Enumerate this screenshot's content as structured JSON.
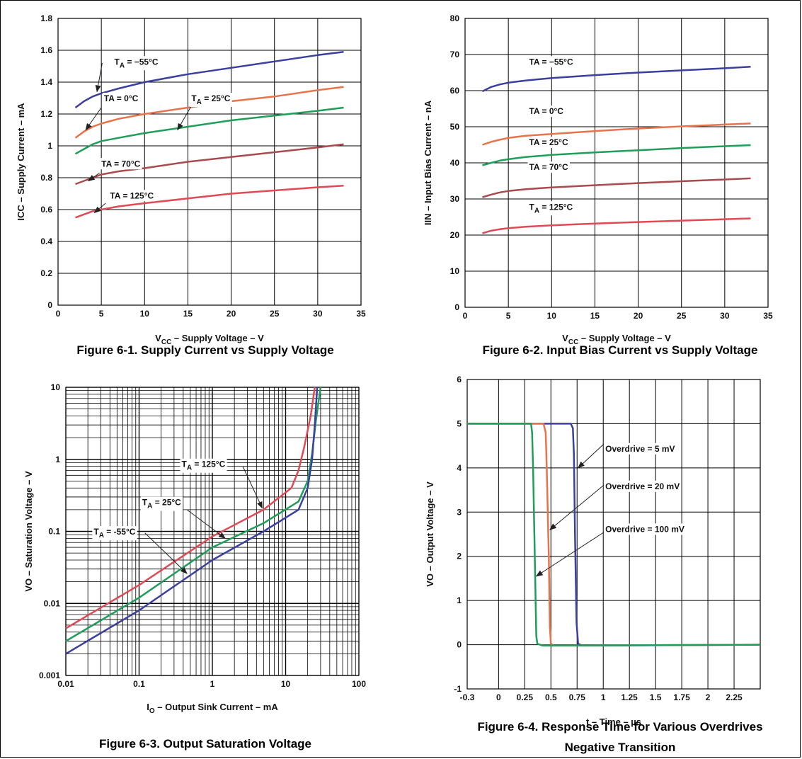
{
  "chart_data": [
    {
      "id": "fig1",
      "type": "line",
      "caption": "Figure 6-1. Supply Current vs Supply Voltage",
      "xlabel": "V",
      "xlabel_sub": "CC",
      "xlabel_rest": " – Supply Voltage – V",
      "ylabel": "ICC – Supply Current – mA",
      "xlim": [
        0,
        35
      ],
      "ylim": [
        0,
        1.8
      ],
      "xticks": [
        0,
        5,
        10,
        15,
        20,
        25,
        30,
        35
      ],
      "yticks": [
        0,
        0.2,
        0.4,
        0.6,
        0.8,
        1,
        1.2,
        1.4,
        1.6,
        1.8
      ],
      "ytick_labels": [
        "0",
        "0.2",
        "0.4",
        "0.6",
        "0.8",
        "1",
        "1.2",
        "1.4",
        "1.6",
        "1.8"
      ],
      "grid": true,
      "series": [
        {
          "name": "TA = −55°C",
          "color": "#3b3f9e",
          "x": [
            2,
            3,
            4,
            5,
            7,
            10,
            15,
            20,
            25,
            30,
            33
          ],
          "y": [
            1.24,
            1.28,
            1.31,
            1.33,
            1.36,
            1.4,
            1.45,
            1.49,
            1.53,
            1.57,
            1.59
          ]
        },
        {
          "name": "TA = 0°C",
          "color": "#e8734a",
          "x": [
            2,
            3,
            4,
            5,
            7,
            10,
            15,
            20,
            25,
            30,
            33
          ],
          "y": [
            1.05,
            1.09,
            1.12,
            1.14,
            1.17,
            1.2,
            1.24,
            1.28,
            1.31,
            1.35,
            1.37
          ]
        },
        {
          "name": "TA = 25°C",
          "color": "#1f9e5a",
          "x": [
            2,
            3,
            4,
            5,
            7,
            10,
            15,
            20,
            25,
            30,
            33
          ],
          "y": [
            0.95,
            0.98,
            1.01,
            1.03,
            1.05,
            1.08,
            1.12,
            1.16,
            1.19,
            1.22,
            1.24
          ]
        },
        {
          "name": "TA = 70°C",
          "color": "#a94a4f",
          "x": [
            2,
            3,
            4,
            5,
            7,
            10,
            15,
            20,
            25,
            30,
            33
          ],
          "y": [
            0.76,
            0.78,
            0.8,
            0.82,
            0.84,
            0.86,
            0.9,
            0.93,
            0.96,
            0.99,
            1.01
          ]
        },
        {
          "name": "TA = 125°C",
          "color": "#e04a55",
          "x": [
            2,
            3,
            4,
            5,
            7,
            10,
            15,
            20,
            25,
            30,
            33
          ],
          "y": [
            0.55,
            0.57,
            0.59,
            0.6,
            0.62,
            0.64,
            0.67,
            0.7,
            0.72,
            0.74,
            0.75
          ]
        }
      ],
      "annotations": [
        {
          "text": "T",
          "sub": "A",
          "rest": " = −55°C",
          "tx": 6.5,
          "ty": 1.51,
          "ax": 5.1,
          "ay": 1.52,
          "px": 4.5,
          "py": 1.34
        },
        {
          "text": "TA = 0°C",
          "tx": 5.3,
          "ty": 1.28,
          "ax": 5.0,
          "ay": 1.24,
          "px": 3.2,
          "py": 1.1
        },
        {
          "text": "T",
          "sub": "A",
          "rest": " = 25°C",
          "tx": 15.4,
          "ty": 1.28,
          "ax": 15.5,
          "ay": 1.26,
          "px": 13.8,
          "py": 1.1
        },
        {
          "text": "TA = 70°C",
          "tx": 5.0,
          "ty": 0.87,
          "ax": 4.8,
          "ay": 0.83,
          "px": 3.5,
          "py": 0.78
        },
        {
          "text": "TA = 125°C",
          "tx": 6.0,
          "ty": 0.67,
          "ax": 5.5,
          "ay": 0.64,
          "px": 4.2,
          "py": 0.58
        }
      ]
    },
    {
      "id": "fig2",
      "type": "line",
      "caption": "Figure 6-2. Input Bias Current vs Supply Voltage",
      "xlabel": "V",
      "xlabel_sub": "CC",
      "xlabel_rest": " – Supply Voltage – V",
      "ylabel": "IIN – Input Bias Current – nA",
      "xlim": [
        0,
        35
      ],
      "ylim": [
        0,
        80
      ],
      "xticks": [
        0,
        5,
        10,
        15,
        20,
        25,
        30,
        35
      ],
      "yticks": [
        0,
        10,
        20,
        30,
        40,
        50,
        60,
        70,
        80
      ],
      "ytick_labels": [
        "0",
        "10",
        "20",
        "30",
        "40",
        "50",
        "60",
        "70",
        "80"
      ],
      "grid": true,
      "series": [
        {
          "name": "TA = −55°C",
          "color": "#3b3f9e",
          "x": [
            2,
            3,
            4,
            5,
            7,
            10,
            15,
            20,
            25,
            30,
            33
          ],
          "y": [
            59.8,
            61.0,
            61.7,
            62.2,
            62.8,
            63.5,
            64.3,
            65.0,
            65.6,
            66.2,
            66.6
          ]
        },
        {
          "name": "TA = 0°C",
          "color": "#e8734a",
          "x": [
            2,
            3,
            4,
            5,
            7,
            10,
            15,
            20,
            25,
            30,
            33
          ],
          "y": [
            45.0,
            45.8,
            46.4,
            46.9,
            47.5,
            48.0,
            48.8,
            49.5,
            50.1,
            50.6,
            50.9
          ]
        },
        {
          "name": "TA = 25°C",
          "color": "#1f9e5a",
          "x": [
            2,
            3,
            4,
            5,
            7,
            10,
            15,
            20,
            25,
            30,
            33
          ],
          "y": [
            39.3,
            40.0,
            40.6,
            41.0,
            41.6,
            42.2,
            42.9,
            43.5,
            44.1,
            44.6,
            44.9
          ]
        },
        {
          "name": "TA = 70°C",
          "color": "#a94a4f",
          "x": [
            2,
            3,
            4,
            5,
            7,
            10,
            15,
            20,
            25,
            30,
            33
          ],
          "y": [
            30.5,
            31.2,
            31.8,
            32.2,
            32.7,
            33.2,
            33.8,
            34.4,
            34.9,
            35.4,
            35.7
          ]
        },
        {
          "name": "TA = 125°C",
          "color": "#e04a55",
          "x": [
            2,
            3,
            4,
            5,
            7,
            10,
            15,
            20,
            25,
            30,
            33
          ],
          "y": [
            20.5,
            21.2,
            21.6,
            21.9,
            22.3,
            22.7,
            23.2,
            23.6,
            24.0,
            24.4,
            24.6
          ]
        }
      ],
      "annotations": [
        {
          "text": "TA = −55°C",
          "tx": 7.4,
          "ty": 67.2
        },
        {
          "text": "TA = 0°C",
          "tx": 7.4,
          "ty": 53.5
        },
        {
          "text": "TA = 25°C",
          "tx": 7.4,
          "ty": 44.9
        },
        {
          "text": "TA = 70°C",
          "tx": 7.4,
          "ty": 38.0
        },
        {
          "text": "T",
          "sub": "A",
          "rest": " = 125°C",
          "tx": 7.4,
          "ty": 27.0
        }
      ]
    },
    {
      "id": "fig3",
      "type": "line",
      "caption": "Figure 6-3. Output Saturation Voltage",
      "xlabel": "I",
      "xlabel_sub": "O",
      "xlabel_rest": " – Output Sink Current – mA",
      "ylabel": "VO – Saturation Voltage – V",
      "xscale": "log",
      "yscale": "log",
      "xlim": [
        0.01,
        100
      ],
      "ylim": [
        0.001,
        10
      ],
      "xticks": [
        0.01,
        0.1,
        1,
        10,
        100
      ],
      "xtick_labels": [
        "0.01",
        "0.1",
        "1",
        "10",
        "100"
      ],
      "yticks": [
        0.001,
        0.01,
        0.1,
        1,
        10
      ],
      "ytick_labels": [
        "0.001",
        "0.01",
        "0.1",
        "1",
        "10"
      ],
      "grid": true,
      "series": [
        {
          "name": "TA = 125°C",
          "color": "#e04a55",
          "x": [
            0.01,
            0.1,
            1,
            5,
            12,
            15,
            18,
            22,
            25
          ],
          "y": [
            0.0045,
            0.018,
            0.085,
            0.2,
            0.4,
            0.7,
            1.5,
            4,
            10
          ]
        },
        {
          "name": "TA = 25°C",
          "color": "#1f9e5a",
          "x": [
            0.01,
            0.1,
            1,
            5,
            15,
            20,
            23,
            26,
            30
          ],
          "y": [
            0.003,
            0.012,
            0.06,
            0.13,
            0.26,
            0.5,
            1.2,
            3.5,
            10
          ]
        },
        {
          "name": "TA = -55°C",
          "color": "#3b3f9e",
          "x": [
            0.01,
            0.1,
            1,
            5,
            15,
            20,
            23,
            25,
            27
          ],
          "y": [
            0.002,
            0.008,
            0.04,
            0.1,
            0.2,
            0.4,
            1.0,
            3.0,
            10
          ]
        }
      ],
      "annotations": [
        {
          "text": "T",
          "sub": "A",
          "rest": " = 125°C",
          "tx": 0.38,
          "ty": 0.78,
          "ax": 2.6,
          "ay": 0.8,
          "px": 4.8,
          "py": 0.21
        },
        {
          "text": "T",
          "sub": "A",
          "rest": " = 25°C",
          "tx": 0.11,
          "ty": 0.23,
          "ax": 0.45,
          "ay": 0.2,
          "px": 1.5,
          "py": 0.08
        },
        {
          "text": "T",
          "sub": "A",
          "rest": " = -55°C",
          "tx": 0.024,
          "ty": 0.09,
          "ax": 0.12,
          "ay": 0.095,
          "px": 0.45,
          "py": 0.026
        }
      ]
    },
    {
      "id": "fig4",
      "type": "line",
      "caption": "Figure 6-4. Response Time for Various Overdrives",
      "caption2": "Negative Transition",
      "xlabel": "t – Time – µs",
      "ylabel": "VO – Output Voltage – V",
      "xlim": [
        -0.3,
        2.5
      ],
      "ylim": [
        -1,
        6
      ],
      "xticks": [
        -0.3,
        0,
        0.25,
        0.5,
        0.75,
        1,
        1.25,
        1.5,
        1.75,
        2,
        2.25
      ],
      "xtick_labels": [
        "-0.3",
        "0",
        "0.25",
        "0.5",
        "0.75",
        "1",
        "1.25",
        "1.5",
        "1.75",
        "2",
        "2.25"
      ],
      "yticks": [
        -1,
        0,
        1,
        2,
        3,
        4,
        5,
        6
      ],
      "ytick_labels": [
        "-1",
        "0",
        "1",
        "2",
        "3",
        "4",
        "5",
        "6"
      ],
      "grid": true,
      "series": [
        {
          "name": "Overdrive = 5 mV",
          "color": "#3b3f9e",
          "x": [
            -0.3,
            0.69,
            0.71,
            0.72,
            0.73,
            0.745,
            0.76,
            0.8,
            2.5
          ],
          "y": [
            5,
            5,
            4.9,
            4.3,
            2.5,
            0.5,
            0.02,
            -0.02,
            0
          ]
        },
        {
          "name": "Overdrive = 20 mV",
          "color": "#e8734a",
          "x": [
            -0.3,
            0.43,
            0.45,
            0.46,
            0.48,
            0.49,
            0.5,
            0.53,
            2.5
          ],
          "y": [
            5,
            5,
            4.8,
            4.0,
            2.0,
            0.4,
            0.02,
            -0.02,
            0
          ]
        },
        {
          "name": "Overdrive = 100 mV",
          "color": "#1f9e5a",
          "x": [
            -0.3,
            0.31,
            0.32,
            0.33,
            0.35,
            0.36,
            0.37,
            0.42,
            2.5
          ],
          "y": [
            5,
            5,
            4.8,
            4.0,
            1.5,
            0.2,
            0.02,
            -0.02,
            0
          ]
        }
      ],
      "annotations": [
        {
          "text": "Overdrive = 5 mV",
          "tx": 1.02,
          "ty": 4.37,
          "ax": 1.01,
          "ay": 4.55,
          "px": 0.76,
          "py": 4.0
        },
        {
          "text": "Overdrive = 20 mV",
          "tx": 1.02,
          "ty": 3.52,
          "ax": 1.01,
          "ay": 3.62,
          "px": 0.49,
          "py": 2.6
        },
        {
          "text": "Overdrive = 100 mV",
          "tx": 1.02,
          "ty": 2.55,
          "ax": 1.01,
          "ay": 2.55,
          "px": 0.36,
          "py": 1.55
        }
      ]
    }
  ]
}
